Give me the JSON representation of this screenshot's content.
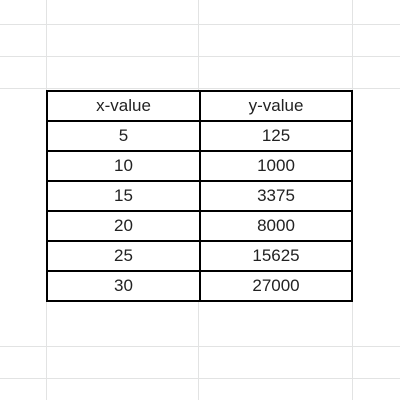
{
  "table": {
    "headers": [
      "x-value",
      "y-value"
    ],
    "rows": [
      [
        "5",
        "125"
      ],
      [
        "10",
        "1000"
      ],
      [
        "15",
        "3375"
      ],
      [
        "20",
        "8000"
      ],
      [
        "25",
        "15625"
      ],
      [
        "30",
        "27000"
      ]
    ]
  },
  "colors": {
    "gridline": "#e2e3e3",
    "table_border": "#000000",
    "text": "#222222",
    "background": "#ffffff"
  }
}
